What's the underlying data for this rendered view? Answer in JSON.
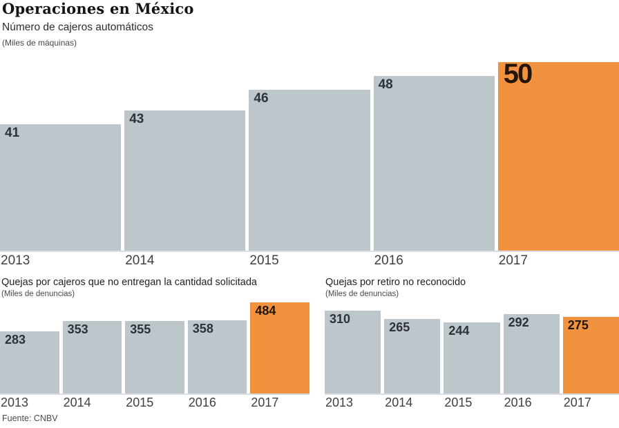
{
  "page": {
    "title": "Operaciones en México",
    "source": "Fuente: CNBV"
  },
  "colors": {
    "background": "#ffffff",
    "bar_gray": "#bdc6cb",
    "bar_orange": "#f0923e",
    "label_dark": "#2d3237",
    "label_on_orange": "#23150a",
    "axis_line": "#d9dde1"
  },
  "chart_data": [
    {
      "type": "bar",
      "title": "Número de cajeros automáticos",
      "subtitle": "(Miles de máquinas)",
      "categories": [
        "2013",
        "2014",
        "2015",
        "2016",
        "2017"
      ],
      "values": [
        41,
        43,
        46,
        48,
        50
      ],
      "highlight_index": 4,
      "big_highlight_label": true,
      "ylim": [
        22.7,
        50
      ],
      "grid": false,
      "legend": false
    },
    {
      "type": "bar",
      "title": "Quejas por cajeros que no entregan la cantidad solicitada",
      "subtitle": "(Miles de denuncias)",
      "categories": [
        "2013",
        "2014",
        "2015",
        "2016",
        "2017"
      ],
      "values": [
        283,
        353,
        355,
        358,
        484
      ],
      "highlight_index": 4,
      "big_highlight_label": false,
      "ylim": [
        -148,
        484
      ],
      "grid": false,
      "legend": false
    },
    {
      "type": "bar",
      "title": "Quejas por retiro no reconocido",
      "subtitle": "(Miles de denuncias)",
      "categories": [
        "2013",
        "2014",
        "2015",
        "2016",
        "2017"
      ],
      "values": [
        310,
        265,
        244,
        292,
        275
      ],
      "highlight_index": 4,
      "big_highlight_label": false,
      "ylim": [
        -148,
        310
      ],
      "grid": false,
      "legend": false
    }
  ]
}
